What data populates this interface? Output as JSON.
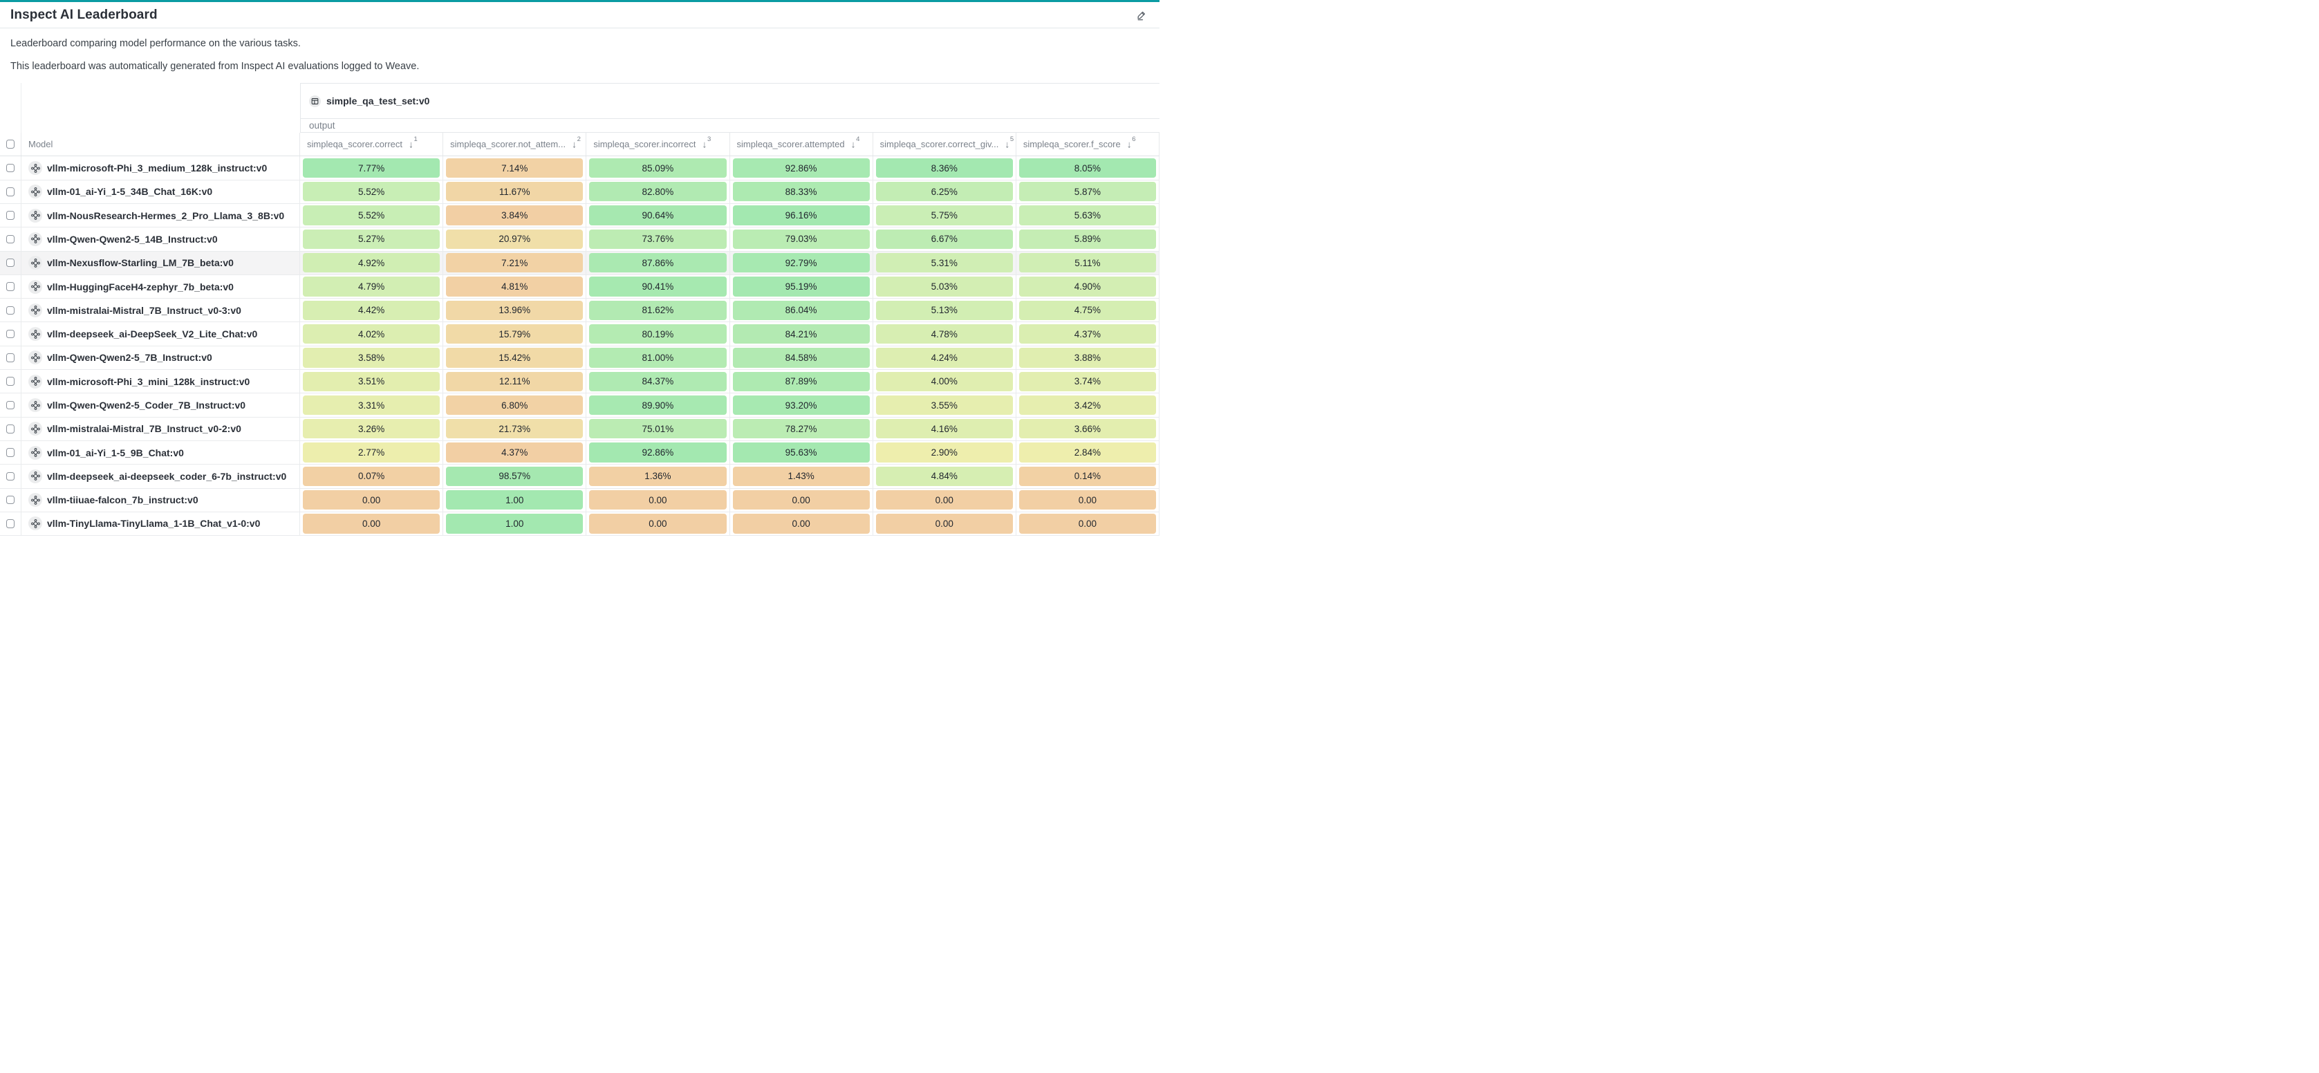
{
  "header": {
    "title": "Inspect AI Leaderboard",
    "edit_icon": "pencil-icon"
  },
  "description": {
    "line1": "Leaderboard comparing model performance on the various tasks.",
    "line2": "This leaderboard was automatically generated from Inspect AI evaluations logged to Weave."
  },
  "table": {
    "group": {
      "dataset": "simple_qa_test_set:v0",
      "dataset_icon": "table-icon",
      "output_label": "output"
    },
    "model_header": "Model",
    "columns": [
      {
        "label": "simpleqa_scorer.correct",
        "sort_arrow": "↓",
        "sort_order": "1"
      },
      {
        "label": "simpleqa_scorer.not_attem...",
        "sort_arrow": "↓",
        "sort_order": "2"
      },
      {
        "label": "simpleqa_scorer.incorrect",
        "sort_arrow": "↓",
        "sort_order": "3"
      },
      {
        "label": "simpleqa_scorer.attempted",
        "sort_arrow": "↓",
        "sort_order": "4"
      },
      {
        "label": "simpleqa_scorer.correct_giv...",
        "sort_arrow": "↓",
        "sort_order": "5"
      },
      {
        "label": "simpleqa_scorer.f_score",
        "sort_arrow": "↓",
        "sort_order": "6"
      }
    ],
    "rows": [
      {
        "model": "vllm-microsoft-Phi_3_medium_128k_instruct:v0",
        "values": [
          "7.77%",
          "7.14%",
          "85.09%",
          "92.86%",
          "8.36%",
          "8.05%"
        ],
        "highlighted": false
      },
      {
        "model": "vllm-01_ai-Yi_1-5_34B_Chat_16K:v0",
        "values": [
          "5.52%",
          "11.67%",
          "82.80%",
          "88.33%",
          "6.25%",
          "5.87%"
        ],
        "highlighted": false
      },
      {
        "model": "vllm-NousResearch-Hermes_2_Pro_Llama_3_8B:v0",
        "values": [
          "5.52%",
          "3.84%",
          "90.64%",
          "96.16%",
          "5.75%",
          "5.63%"
        ],
        "highlighted": false
      },
      {
        "model": "vllm-Qwen-Qwen2-5_14B_Instruct:v0",
        "values": [
          "5.27%",
          "20.97%",
          "73.76%",
          "79.03%",
          "6.67%",
          "5.89%"
        ],
        "highlighted": false
      },
      {
        "model": "vllm-Nexusflow-Starling_LM_7B_beta:v0",
        "values": [
          "4.92%",
          "7.21%",
          "87.86%",
          "92.79%",
          "5.31%",
          "5.11%"
        ],
        "highlighted": true
      },
      {
        "model": "vllm-HuggingFaceH4-zephyr_7b_beta:v0",
        "values": [
          "4.79%",
          "4.81%",
          "90.41%",
          "95.19%",
          "5.03%",
          "4.90%"
        ],
        "highlighted": false
      },
      {
        "model": "vllm-mistralai-Mistral_7B_Instruct_v0-3:v0",
        "values": [
          "4.42%",
          "13.96%",
          "81.62%",
          "86.04%",
          "5.13%",
          "4.75%"
        ],
        "highlighted": false
      },
      {
        "model": "vllm-deepseek_ai-DeepSeek_V2_Lite_Chat:v0",
        "values": [
          "4.02%",
          "15.79%",
          "80.19%",
          "84.21%",
          "4.78%",
          "4.37%"
        ],
        "highlighted": false
      },
      {
        "model": "vllm-Qwen-Qwen2-5_7B_Instruct:v0",
        "values": [
          "3.58%",
          "15.42%",
          "81.00%",
          "84.58%",
          "4.24%",
          "3.88%"
        ],
        "highlighted": false
      },
      {
        "model": "vllm-microsoft-Phi_3_mini_128k_instruct:v0",
        "values": [
          "3.51%",
          "12.11%",
          "84.37%",
          "87.89%",
          "4.00%",
          "3.74%"
        ],
        "highlighted": false
      },
      {
        "model": "vllm-Qwen-Qwen2-5_Coder_7B_Instruct:v0",
        "values": [
          "3.31%",
          "6.80%",
          "89.90%",
          "93.20%",
          "3.55%",
          "3.42%"
        ],
        "highlighted": false
      },
      {
        "model": "vllm-mistralai-Mistral_7B_Instruct_v0-2:v0",
        "values": [
          "3.26%",
          "21.73%",
          "75.01%",
          "78.27%",
          "4.16%",
          "3.66%"
        ],
        "highlighted": false
      },
      {
        "model": "vllm-01_ai-Yi_1-5_9B_Chat:v0",
        "values": [
          "2.77%",
          "4.37%",
          "92.86%",
          "95.63%",
          "2.90%",
          "2.84%"
        ],
        "highlighted": false
      },
      {
        "model": "vllm-deepseek_ai-deepseek_coder_6-7b_instruct:v0",
        "values": [
          "0.07%",
          "98.57%",
          "1.36%",
          "1.43%",
          "4.84%",
          "0.14%"
        ],
        "highlighted": false
      },
      {
        "model": "vllm-tiiuae-falcon_7b_instruct:v0",
        "values": [
          "0.00",
          "1.00",
          "0.00",
          "0.00",
          "0.00",
          "0.00"
        ],
        "highlighted": false
      },
      {
        "model": "vllm-TinyLlama-TinyLlama_1-1B_Chat_v1-0:v0",
        "values": [
          "0.00",
          "1.00",
          "0.00",
          "0.00",
          "0.00",
          "0.00"
        ],
        "highlighted": false
      }
    ]
  },
  "colors": {
    "accent_top_bar": "#0b9ca3",
    "title_text": "#2b3038",
    "muted_text": "#7b828b",
    "cell_text": "#22272e",
    "row_highlight": "#f4f4f5",
    "cell_scale": {
      "stops": [
        0,
        0.35,
        0.7,
        1
      ],
      "colors": [
        "#f2cfa4",
        "#eeeead",
        "#c9eeb5",
        "#a3e8b0"
      ]
    }
  }
}
